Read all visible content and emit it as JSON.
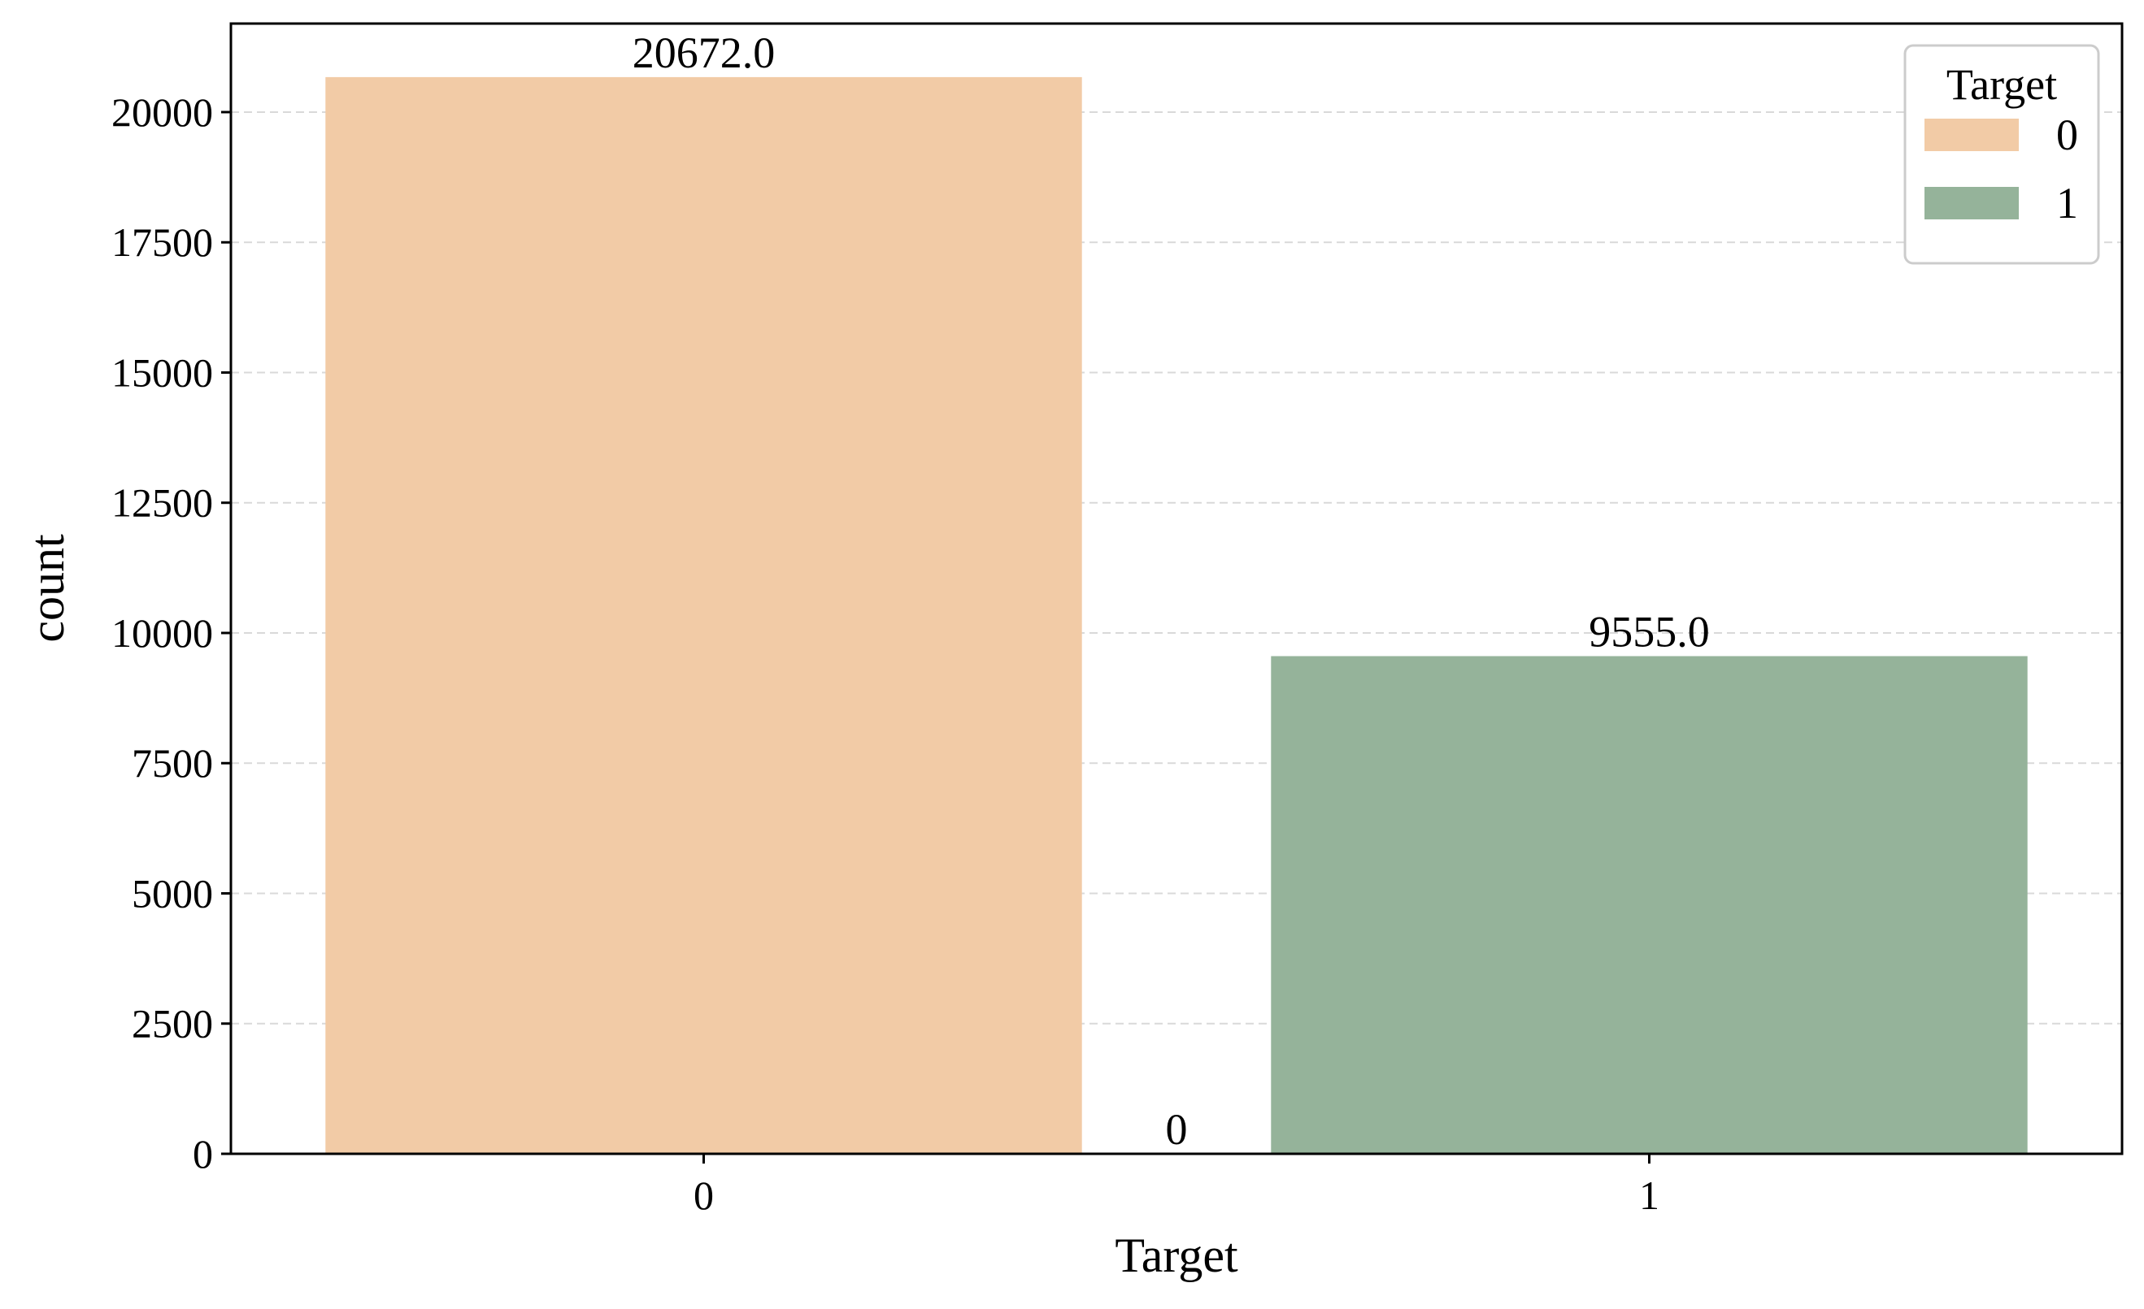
{
  "chart_data": {
    "type": "bar",
    "title": "",
    "xlabel": "Target",
    "ylabel": "count",
    "categories": [
      "0",
      "1"
    ],
    "values": [
      20672,
      9555
    ],
    "ylim": [
      0,
      21700
    ],
    "yticks": [
      0,
      2500,
      5000,
      7500,
      10000,
      12500,
      15000,
      17500,
      20000
    ],
    "grid": "y dashed",
    "bar_labels": [
      "20672.0",
      "9555.0"
    ],
    "stray_annotation": "0",
    "colors": [
      "#f2cba6",
      "#95b39a"
    ],
    "legend": {
      "title": "Target",
      "entries": [
        "0",
        "1"
      ],
      "position": "top-right"
    }
  }
}
